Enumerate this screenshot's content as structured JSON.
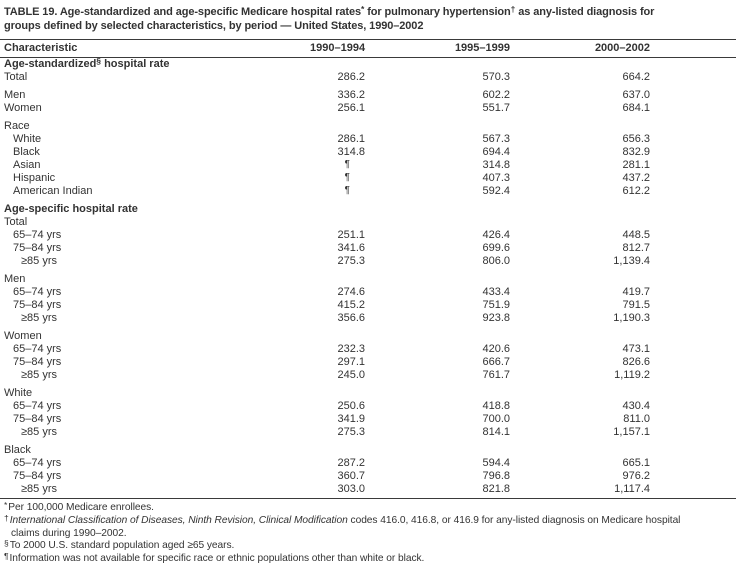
{
  "title": {
    "segments": [
      {
        "text": "TABLE 19. Age-standardized and age-specific Medicare hospital rates"
      },
      {
        "sup": "*"
      },
      {
        "text": " for pulmonary hypertension"
      },
      {
        "sup": "†"
      },
      {
        "text": " as any-listed diagnosis for"
      },
      {
        "br": true
      },
      {
        "text": "groups defined by selected characteristics, by period — United States, 1990–2002"
      }
    ]
  },
  "table": {
    "columns": [
      "Characteristic",
      "1990–1994",
      "1995–1999",
      "2000–2002"
    ],
    "rows": [
      {
        "label_pre": "Age-standardized",
        "label_sup": "§",
        "label_post": " hospital rate",
        "bold": true,
        "indent": 0,
        "gap": false,
        "values": [
          "",
          "",
          ""
        ]
      },
      {
        "label": "Total",
        "indent": 0,
        "gap": false,
        "values": [
          "286.2",
          "570.3",
          "664.2"
        ]
      },
      {
        "label": "Men",
        "indent": 0,
        "gap": true,
        "values": [
          "336.2",
          "602.2",
          "637.0"
        ]
      },
      {
        "label": "Women",
        "indent": 0,
        "gap": false,
        "values": [
          "256.1",
          "551.7",
          "684.1"
        ]
      },
      {
        "label": "Race",
        "indent": 0,
        "gap": true,
        "values": [
          "",
          "",
          ""
        ]
      },
      {
        "label": "White",
        "indent": 1,
        "gap": false,
        "values": [
          "286.1",
          "567.3",
          "656.3"
        ]
      },
      {
        "label": "Black",
        "indent": 1,
        "gap": false,
        "values": [
          "314.8",
          "694.4",
          "832.9"
        ]
      },
      {
        "label": "Asian",
        "indent": 1,
        "gap": false,
        "values": [
          "¶",
          "314.8",
          "281.1"
        ]
      },
      {
        "label": "Hispanic",
        "indent": 1,
        "gap": false,
        "values": [
          "¶",
          "407.3",
          "437.2"
        ]
      },
      {
        "label": "American Indian",
        "indent": 1,
        "gap": false,
        "values": [
          "¶",
          "592.4",
          "612.2"
        ]
      },
      {
        "label": "Age-specific hospital rate",
        "bold": true,
        "indent": 0,
        "gap": true,
        "values": [
          "",
          "",
          ""
        ]
      },
      {
        "label": "Total",
        "indent": 0,
        "gap": false,
        "values": [
          "",
          "",
          ""
        ]
      },
      {
        "label": "65–74 yrs",
        "indent": 1,
        "gap": false,
        "values": [
          "251.1",
          "426.4",
          "448.5"
        ]
      },
      {
        "label": "75–84 yrs",
        "indent": 1,
        "gap": false,
        "values": [
          "341.6",
          "699.6",
          "812.7"
        ]
      },
      {
        "label": "≥85 yrs",
        "indent": 2,
        "gap": false,
        "values": [
          "275.3",
          "806.0",
          "1,139.4"
        ]
      },
      {
        "label": "Men",
        "indent": 0,
        "gap": true,
        "values": [
          "",
          "",
          ""
        ]
      },
      {
        "label": "65–74 yrs",
        "indent": 1,
        "gap": false,
        "values": [
          "274.6",
          "433.4",
          "419.7"
        ]
      },
      {
        "label": "75–84 yrs",
        "indent": 1,
        "gap": false,
        "values": [
          "415.2",
          "751.9",
          "791.5"
        ]
      },
      {
        "label": "≥85 yrs",
        "indent": 2,
        "gap": false,
        "values": [
          "356.6",
          "923.8",
          "1,190.3"
        ]
      },
      {
        "label": "Women",
        "indent": 0,
        "gap": true,
        "values": [
          "",
          "",
          ""
        ]
      },
      {
        "label": "65–74 yrs",
        "indent": 1,
        "gap": false,
        "values": [
          "232.3",
          "420.6",
          "473.1"
        ]
      },
      {
        "label": "75–84 yrs",
        "indent": 1,
        "gap": false,
        "values": [
          "297.1",
          "666.7",
          "826.6"
        ]
      },
      {
        "label": "≥85 yrs",
        "indent": 2,
        "gap": false,
        "values": [
          "245.0",
          "761.7",
          "1,119.2"
        ]
      },
      {
        "label": "White",
        "indent": 0,
        "gap": true,
        "values": [
          "",
          "",
          ""
        ]
      },
      {
        "label": "65–74 yrs",
        "indent": 1,
        "gap": false,
        "values": [
          "250.6",
          "418.8",
          "430.4"
        ]
      },
      {
        "label": "75–84 yrs",
        "indent": 1,
        "gap": false,
        "values": [
          "341.9",
          "700.0",
          "811.0"
        ]
      },
      {
        "label": "≥85 yrs",
        "indent": 2,
        "gap": false,
        "values": [
          "275.3",
          "814.1",
          "1,157.1"
        ]
      },
      {
        "label": "Black",
        "indent": 0,
        "gap": true,
        "values": [
          "",
          "",
          ""
        ]
      },
      {
        "label": "65–74 yrs",
        "indent": 1,
        "gap": false,
        "values": [
          "287.2",
          "594.4",
          "665.1"
        ]
      },
      {
        "label": "75–84 yrs",
        "indent": 1,
        "gap": false,
        "values": [
          "360.7",
          "796.8",
          "976.2"
        ]
      },
      {
        "label": "≥85 yrs",
        "indent": 2,
        "gap": false,
        "values": [
          "303.0",
          "821.8",
          "1,117.4"
        ]
      }
    ]
  },
  "footnotes": [
    {
      "marker": "*",
      "segments": [
        {
          "text": "Per 100,000 Medicare enrollees."
        }
      ]
    },
    {
      "marker": "†",
      "segments": [
        {
          "text": "International Classification of Diseases, Ninth Revision, Clinical Modification",
          "italic": true
        },
        {
          "text": " codes 416.0, 416.8, or 416.9 for any-listed diagnosis on Medicare hospital"
        },
        {
          "br": true
        },
        {
          "text": "claims during 1990–2002."
        }
      ]
    },
    {
      "marker": "§",
      "segments": [
        {
          "text": "To 2000 U.S. standard population aged ≥65 years."
        }
      ]
    },
    {
      "marker": "¶",
      "segments": [
        {
          "text": "Information was not available for specific race or ethnic populations other than white or black."
        }
      ]
    }
  ]
}
